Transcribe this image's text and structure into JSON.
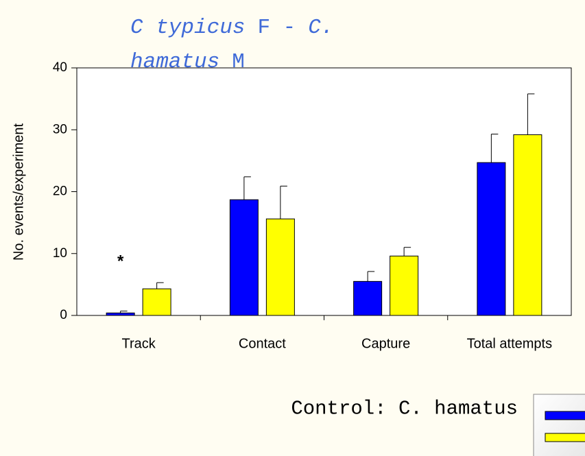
{
  "chart_data": {
    "type": "bar",
    "title": {
      "parts": [
        {
          "text": "C typicus",
          "italic": true
        },
        {
          "text": "F -",
          "italic": false
        },
        {
          "text": "C.",
          "italic": true
        },
        {
          "text": "hamatus",
          "italic": true
        },
        {
          "text": "M",
          "italic": false
        }
      ]
    },
    "ylabel": "No. events/experiment",
    "categories": [
      "Track",
      "Contact",
      "Capture",
      "Total attempts"
    ],
    "series": [
      {
        "name": "Control: C. hamatus",
        "color": "#0000ff",
        "values": [
          0.4,
          18.7,
          5.5,
          24.7
        ],
        "errors": [
          0.3,
          3.7,
          1.6,
          4.6
        ]
      },
      {
        "name": null,
        "color": "#ffff00",
        "values": [
          4.3,
          15.6,
          9.6,
          29.2
        ],
        "errors": [
          1.0,
          5.3,
          1.4,
          6.6
        ]
      }
    ],
    "annotations": [
      {
        "text": "*",
        "category": 0
      }
    ],
    "ylim": [
      0,
      40
    ],
    "yticks": [
      0,
      10,
      20,
      30,
      40
    ]
  }
}
